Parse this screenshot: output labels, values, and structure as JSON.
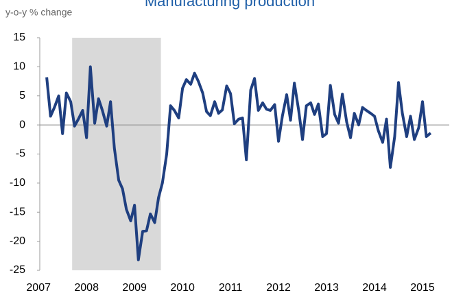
{
  "chart_data": {
    "type": "line",
    "title": "Manufacturing production",
    "y_label": "y-o-y % change",
    "x": [
      2007.17,
      2007.25,
      2007.33,
      2007.42,
      2007.5,
      2007.58,
      2007.67,
      2007.75,
      2007.83,
      2007.92,
      2008,
      2008.08,
      2008.17,
      2008.25,
      2008.33,
      2008.42,
      2008.5,
      2008.58,
      2008.67,
      2008.75,
      2008.83,
      2008.92,
      2009,
      2009.08,
      2009.17,
      2009.25,
      2009.33,
      2009.42,
      2009.5,
      2009.58,
      2009.67,
      2009.75,
      2009.83,
      2009.92,
      2010,
      2010.08,
      2010.17,
      2010.25,
      2010.33,
      2010.42,
      2010.5,
      2010.58,
      2010.67,
      2010.75,
      2010.83,
      2010.92,
      2011,
      2011.08,
      2011.17,
      2011.25,
      2011.33,
      2011.42,
      2011.5,
      2011.58,
      2011.67,
      2011.75,
      2011.83,
      2011.92,
      2012,
      2012.08,
      2012.17,
      2012.25,
      2012.33,
      2012.42,
      2012.5,
      2012.58,
      2012.67,
      2012.75,
      2012.83,
      2012.92,
      2013,
      2013.08,
      2013.17,
      2013.25,
      2013.33,
      2013.42,
      2013.5,
      2013.58,
      2013.67,
      2013.75,
      2013.83,
      2013.92,
      2014,
      2014.08,
      2014.17,
      2014.25,
      2014.33,
      2014.42,
      2014.5,
      2014.58,
      2014.67,
      2014.75,
      2014.83,
      2014.92,
      2015,
      2015.08,
      2015.17
    ],
    "series": [
      {
        "name": "Manufacturing production",
        "color": "#1f3f80",
        "values": [
          8.2,
          1.5,
          3,
          5,
          -1.5,
          5.5,
          4,
          -0.2,
          1,
          2.5,
          -2.2,
          10,
          0.3,
          4.5,
          2.5,
          -0.2,
          4,
          -4,
          -9.5,
          -11,
          -14.5,
          -16.5,
          -13.8,
          -23.2,
          -18.3,
          -18.2,
          -15.3,
          -16.8,
          -12.5,
          -10,
          -5,
          3.3,
          2.5,
          1.2,
          6.3,
          7.8,
          7,
          8.9,
          7.5,
          5.5,
          2.3,
          1.6,
          4,
          2,
          2.6,
          6.7,
          5.4,
          0.2,
          1,
          1.2,
          -6,
          6,
          8,
          2.5,
          3.8,
          2.7,
          2.5,
          3.5,
          -2.8,
          1.5,
          5.2,
          0.8,
          7.2,
          2.5,
          -2.5,
          3.3,
          3.8,
          1.8,
          3.6,
          -2,
          -1.5,
          6.8,
          1.8,
          0.3,
          5.3,
          0.5,
          -2.2,
          2,
          0,
          3,
          2.5,
          2,
          1.5,
          -1,
          -3,
          1,
          -7.3,
          -2,
          7.3,
          2,
          -2,
          1.5,
          -2.5,
          -0.5,
          4,
          -2,
          -1.4
        ]
      }
    ],
    "shaded_region": [
      2007.7,
      2009.55
    ],
    "shade_color": "#d9d9d9",
    "xlim": [
      2006.84,
      2015.4
    ],
    "xticks": [
      2007,
      2008,
      2009,
      2010,
      2011,
      2012,
      2013,
      2014,
      2015
    ],
    "ylim": [
      -25,
      15
    ],
    "yticks": [
      15,
      10,
      5,
      0,
      -5,
      -10,
      -15,
      -20,
      -25
    ]
  }
}
